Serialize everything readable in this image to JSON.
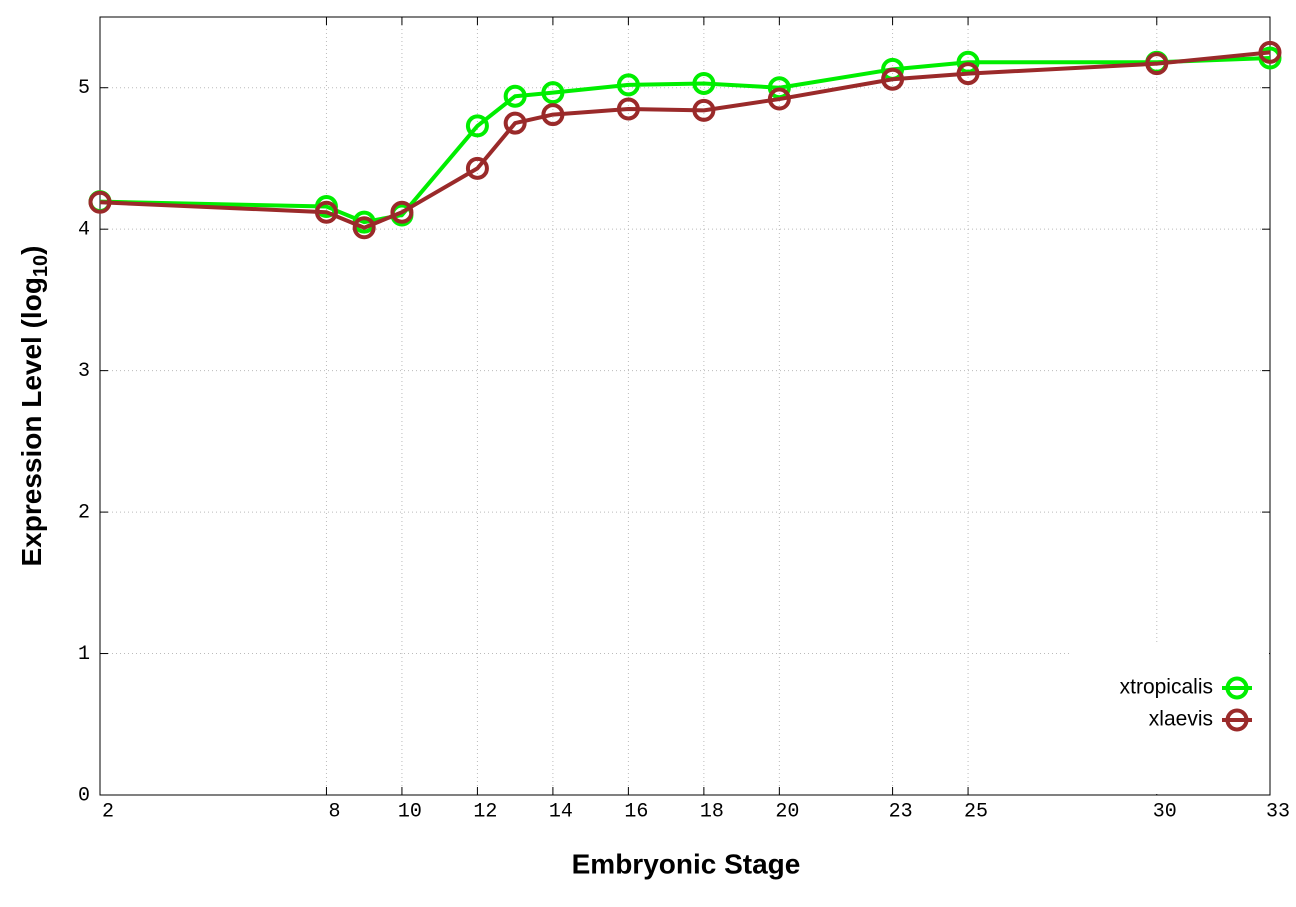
{
  "chart_data": {
    "type": "line",
    "xlabel": "Embryonic Stage",
    "ylabel": [
      "Expression Level (log",
      "10",
      ")"
    ],
    "x": [
      2,
      8,
      9,
      10,
      12,
      13,
      14,
      16,
      18,
      20,
      23,
      25,
      30,
      33
    ],
    "series": [
      {
        "name": "xtropicalis",
        "color": "#00ee00",
        "values": [
          4.195,
          4.16,
          4.05,
          4.1,
          4.73,
          4.94,
          4.965,
          5.02,
          5.03,
          5.0,
          5.13,
          5.18,
          5.18,
          5.21
        ]
      },
      {
        "name": "xlaevis",
        "color": "#9a2a2a",
        "values": [
          4.19,
          4.12,
          4.01,
          4.12,
          4.43,
          4.75,
          4.81,
          4.85,
          4.84,
          4.92,
          5.06,
          5.1,
          5.17,
          5.25
        ]
      }
    ],
    "xlim": [
      2,
      33
    ],
    "xticks": [
      2,
      8,
      10,
      12,
      14,
      16,
      18,
      20,
      23,
      25,
      30,
      33
    ],
    "ylim": [
      0,
      5.5
    ],
    "yticks": [
      0,
      1,
      2,
      3,
      4,
      5
    ],
    "grid": true,
    "legend": "bottom-right"
  }
}
